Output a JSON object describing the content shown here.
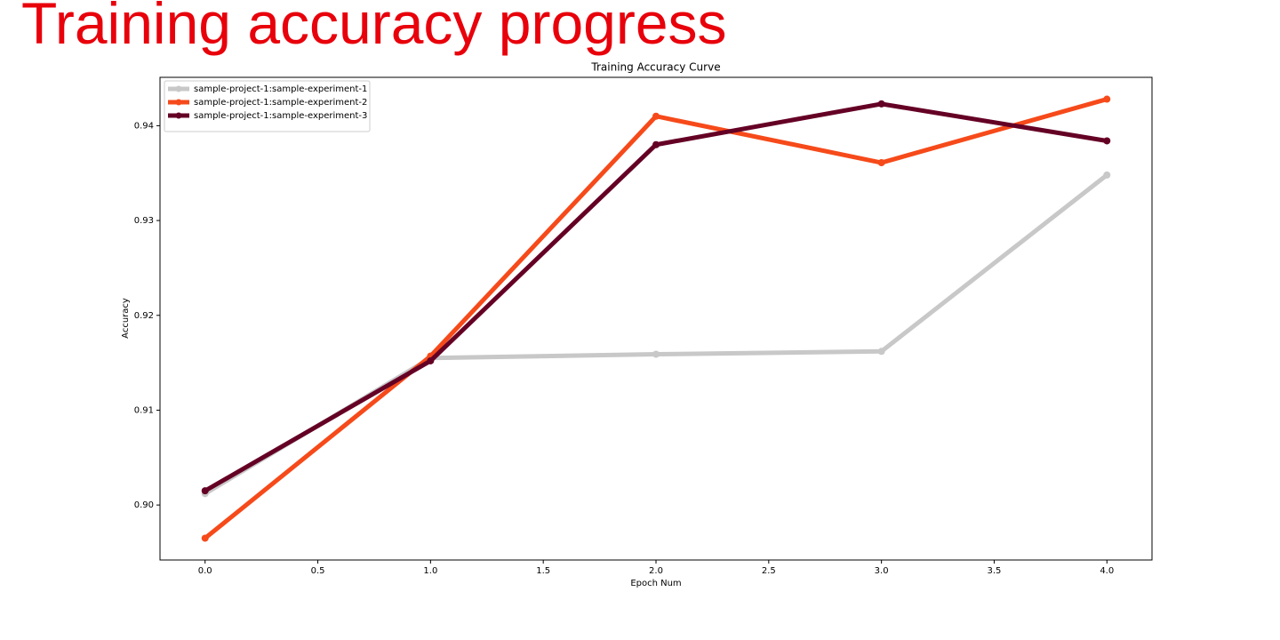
{
  "heading": "Training accuracy progress",
  "chart_data": {
    "type": "line",
    "title": "Training Accuracy Curve",
    "x_label": "Epoch Num",
    "y_label": "Accuracy",
    "x": [
      0,
      1,
      2,
      3,
      4
    ],
    "series": [
      {
        "name": "sample-project-1:sample-experiment-1",
        "color": "#c8c8c8",
        "values": [
          0.9012,
          0.9155,
          0.9159,
          0.9162,
          0.9348
        ]
      },
      {
        "name": "sample-project-1:sample-experiment-2",
        "color": "#f64a1a",
        "values": [
          0.8965,
          0.9157,
          0.941,
          0.9361,
          0.9428
        ]
      },
      {
        "name": "sample-project-1:sample-experiment-3",
        "color": "#650025",
        "values": [
          0.9015,
          0.9152,
          0.938,
          0.9423,
          0.9384
        ]
      }
    ],
    "xlim": [
      -0.2,
      4.2
    ],
    "xticks": [
      {
        "value": 0,
        "label": "0.0"
      },
      0.5,
      {
        "value": 1,
        "label": "1.0"
      },
      1.5,
      {
        "value": 2,
        "label": "2.0"
      },
      2.5,
      {
        "value": 3,
        "label": "3.0"
      },
      3.5,
      {
        "value": 4,
        "label": "4.0"
      }
    ],
    "ylim": [
      0.8942,
      0.9451
    ],
    "yticks": [
      {
        "value": 0.9,
        "label": "0.90"
      },
      0.91,
      0.92,
      0.93,
      0.94
    ],
    "grid": false,
    "legend": "upper-left"
  }
}
